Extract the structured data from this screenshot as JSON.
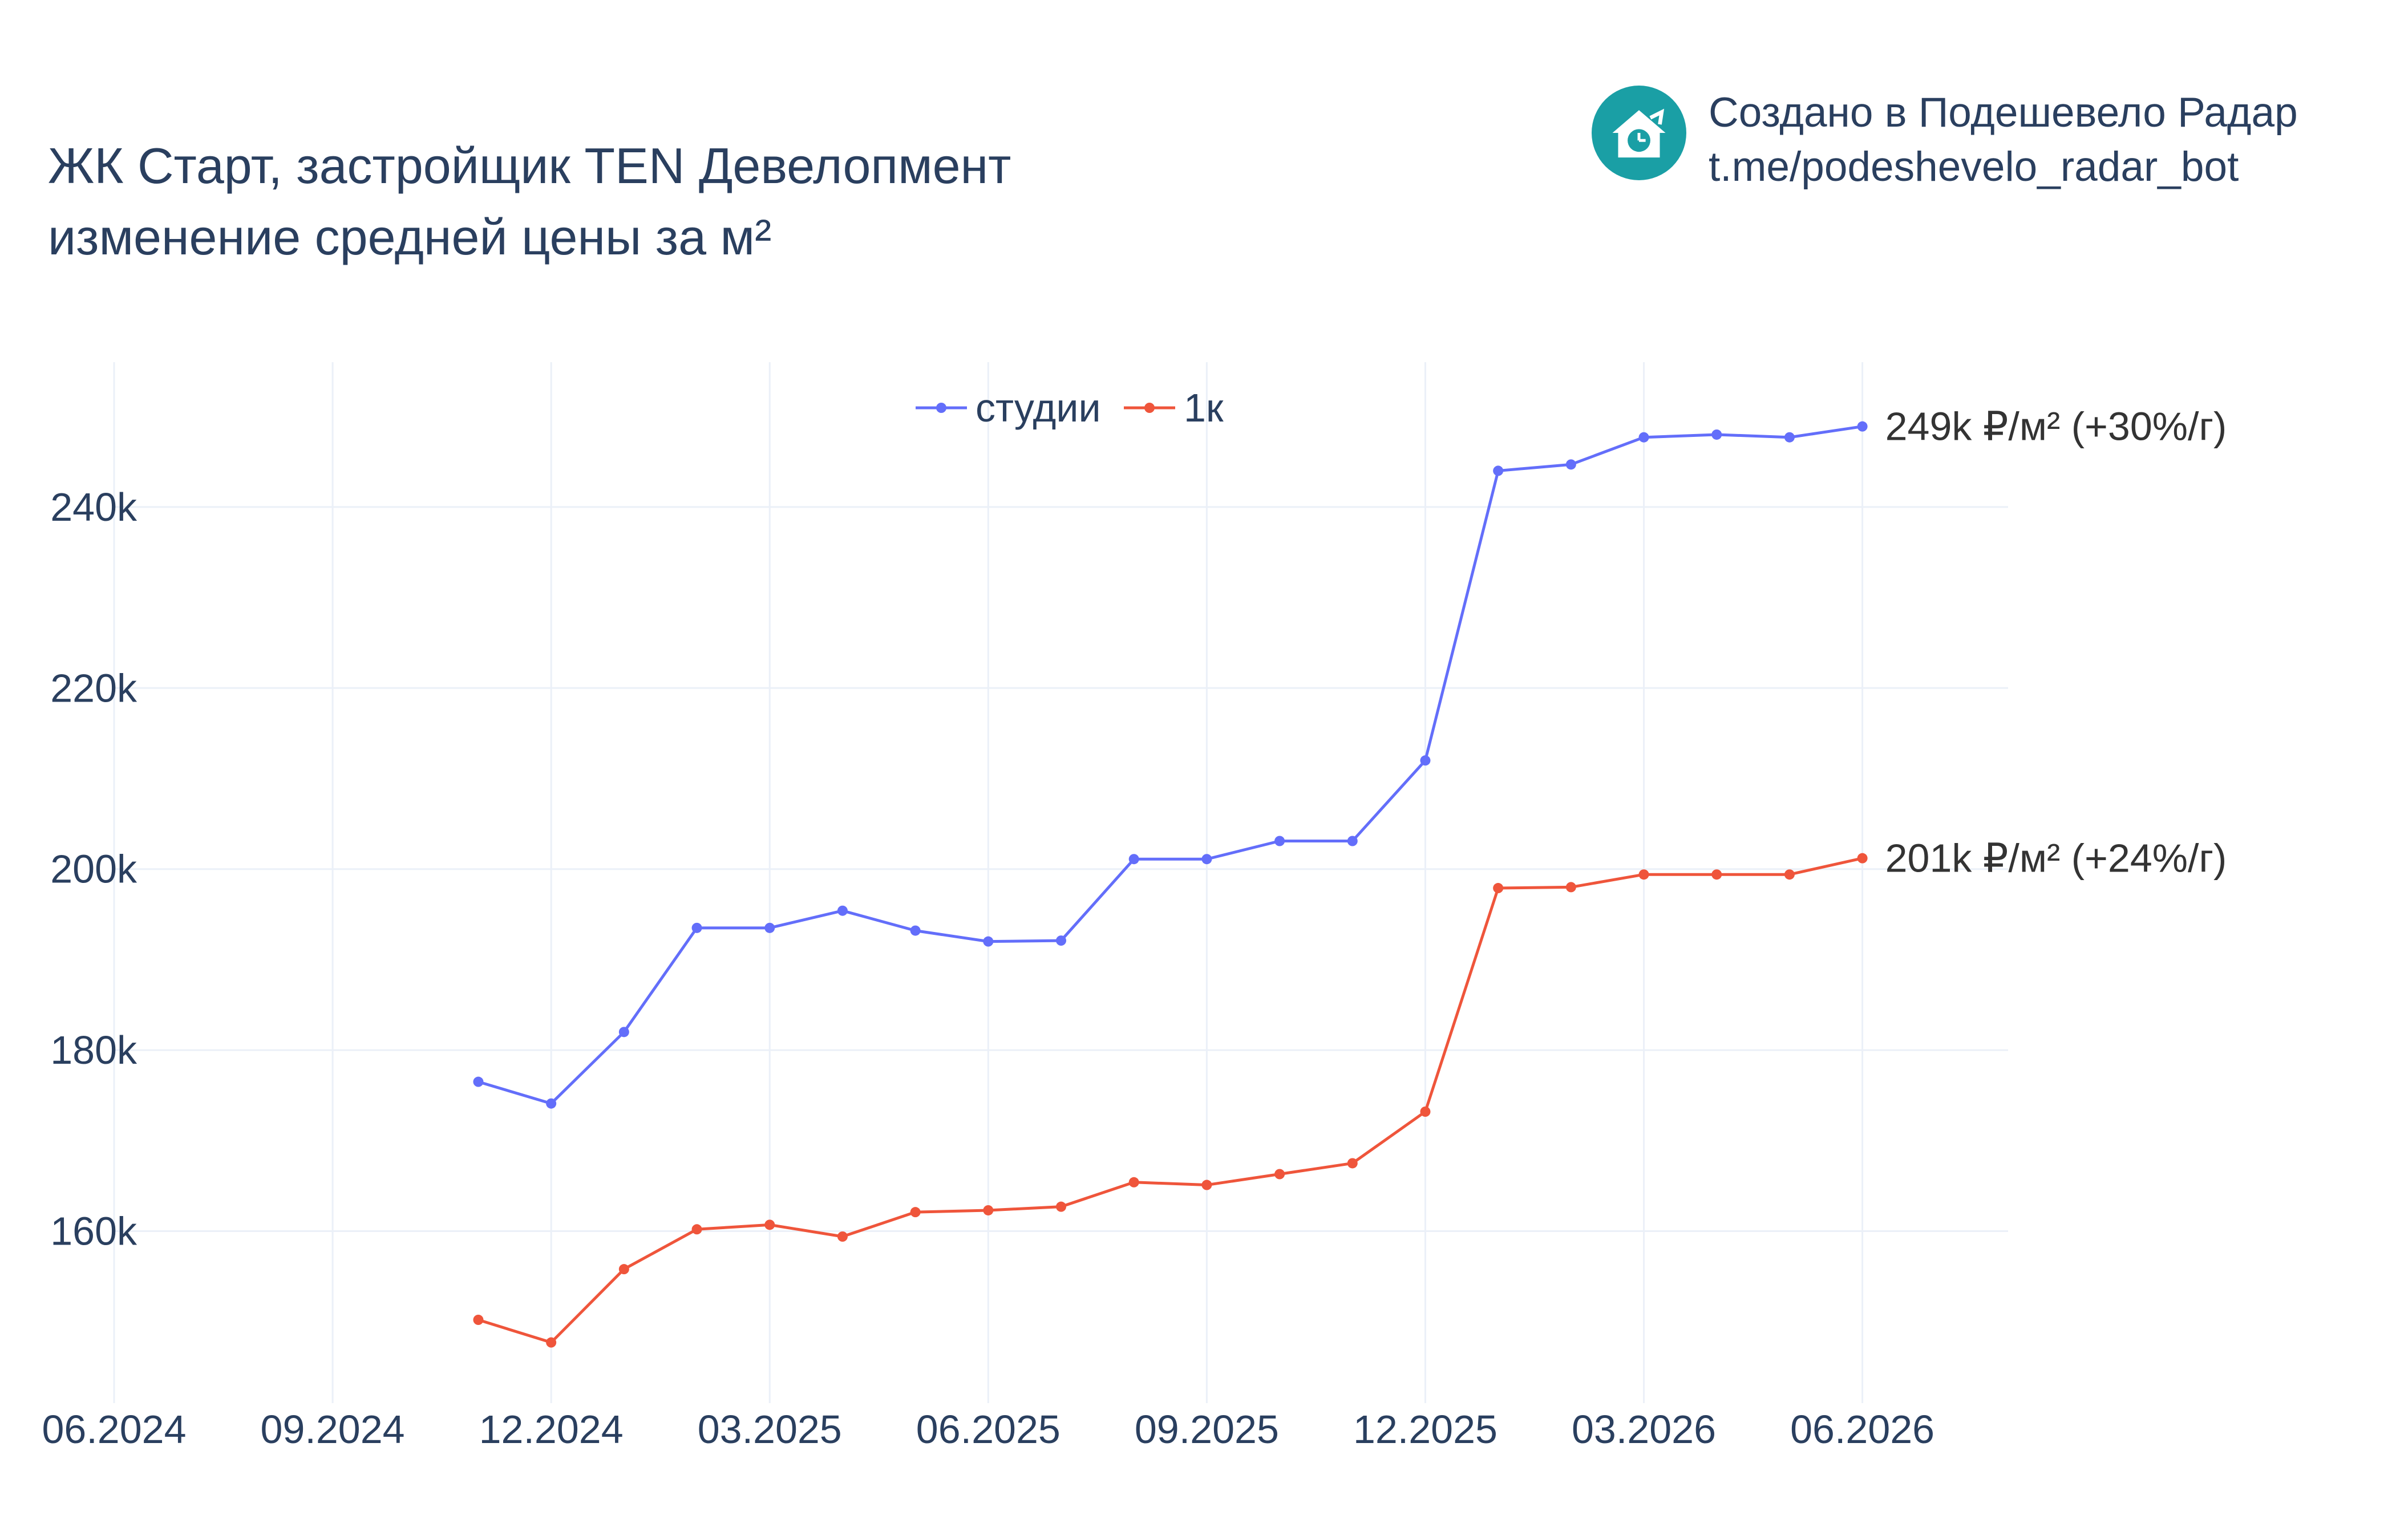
{
  "title": {
    "line1": "ЖК Старт, застройщик TEN Девелопмент",
    "line2": "изменение средней цены за м²"
  },
  "branding": {
    "line1": "Создано в Подешевело Радар",
    "line2": "t.me/podeshevelo_radar_bot",
    "logo_icon": "house-with-clock-icon",
    "logo_color": "#1a9fa5"
  },
  "chart_data": {
    "type": "line",
    "x_tick_labels": [
      "06.2024",
      "09.2024",
      "12.2024",
      "03.2025",
      "06.2025",
      "09.2025",
      "12.2025",
      "03.2026",
      "06.2026"
    ],
    "x_tick_months": [
      "2024-06",
      "2024-09",
      "2024-12",
      "2025-03",
      "2025-06",
      "2025-09",
      "2025-12",
      "2026-03",
      "2026-06"
    ],
    "y_ticks": [
      160000,
      180000,
      200000,
      220000,
      240000
    ],
    "y_tick_labels": [
      "160k",
      "180k",
      "200k",
      "220k",
      "240k"
    ],
    "xlim": [
      "2024-06",
      "2026-08"
    ],
    "ylim": [
      141000,
      256000
    ],
    "grid": true,
    "legend_position": "top-center",
    "x": [
      "2024-11",
      "2024-12",
      "2025-01",
      "2025-02",
      "2025-03",
      "2025-04",
      "2025-05",
      "2025-06",
      "2025-07",
      "2025-08",
      "2025-09",
      "2025-10",
      "2025-11",
      "2025-12",
      "2026-01",
      "2026-02",
      "2026-03",
      "2026-04",
      "2026-05",
      "2026-06"
    ],
    "series": [
      {
        "name": "студии",
        "color": "#636efa",
        "values": [
          176500,
          174100,
          182000,
          193500,
          193500,
          195400,
          193200,
          192000,
          192100,
          201100,
          201100,
          203100,
          203100,
          212000,
          244000,
          244700,
          247700,
          248000,
          247700,
          248900
        ],
        "end_label": "249k ₽/м² (+30%/г)"
      },
      {
        "name": "1к",
        "color": "#ef553b",
        "values": [
          150200,
          147700,
          155800,
          160200,
          160700,
          159400,
          162100,
          162300,
          162700,
          165400,
          165100,
          166300,
          167500,
          173200,
          197900,
          198000,
          199400,
          199400,
          199400,
          201200
        ],
        "end_label": "201k ₽/м² (+24%/г)"
      }
    ]
  }
}
